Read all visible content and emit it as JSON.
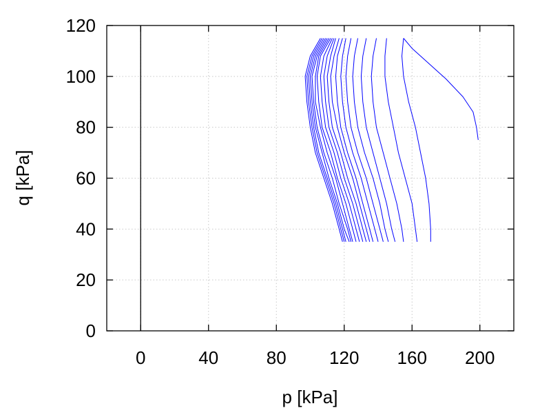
{
  "chart_data": {
    "type": "line",
    "xlabel": "p [kPa]",
    "ylabel": "q [kPa]",
    "xlim": [
      -20,
      220
    ],
    "ylim": [
      0,
      120
    ],
    "xticks": [
      0,
      40,
      80,
      120,
      160,
      200
    ],
    "yticks": [
      0,
      20,
      40,
      60,
      80,
      100,
      120
    ],
    "grid": true,
    "line_color": "#0000ff",
    "reference_line": {
      "x": 0,
      "color": "#000000"
    },
    "series": [
      {
        "points": [
          [
            155,
            115
          ],
          [
            160,
            111
          ],
          [
            170,
            105
          ],
          [
            180,
            99
          ],
          [
            190,
            92
          ],
          [
            196,
            86
          ],
          [
            198,
            80
          ],
          [
            199,
            75
          ]
        ]
      },
      {
        "points": [
          [
            171,
            35
          ],
          [
            171,
            40
          ],
          [
            170,
            50
          ],
          [
            168,
            60
          ],
          [
            165,
            70
          ],
          [
            162,
            80
          ],
          [
            158,
            90
          ],
          [
            155,
            100
          ],
          [
            154,
            108
          ],
          [
            155,
            115
          ]
        ]
      },
      {
        "points": [
          [
            163,
            35
          ],
          [
            162,
            40
          ],
          [
            160,
            50
          ],
          [
            156,
            60
          ],
          [
            152,
            70
          ],
          [
            149,
            80
          ],
          [
            146,
            90
          ],
          [
            144,
            100
          ],
          [
            144,
            108
          ],
          [
            145,
            115
          ]
        ]
      },
      {
        "points": [
          [
            155,
            35
          ],
          [
            154,
            40
          ],
          [
            151,
            50
          ],
          [
            147,
            60
          ],
          [
            143,
            70
          ],
          [
            139,
            80
          ],
          [
            137,
            90
          ],
          [
            136,
            100
          ],
          [
            137,
            108
          ],
          [
            139,
            115
          ]
        ]
      },
      {
        "points": [
          [
            150,
            35
          ],
          [
            148,
            40
          ],
          [
            145,
            50
          ],
          [
            141,
            60
          ],
          [
            137,
            70
          ],
          [
            133,
            80
          ],
          [
            131,
            90
          ],
          [
            130,
            100
          ],
          [
            131,
            108
          ],
          [
            133,
            115
          ]
        ]
      },
      {
        "points": [
          [
            146,
            35
          ],
          [
            144,
            40
          ],
          [
            141,
            50
          ],
          [
            137,
            60
          ],
          [
            132,
            70
          ],
          [
            128,
            80
          ],
          [
            126,
            90
          ],
          [
            125,
            100
          ],
          [
            126,
            108
          ],
          [
            128,
            115
          ]
        ]
      },
      {
        "points": [
          [
            143,
            35
          ],
          [
            141,
            40
          ],
          [
            137,
            50
          ],
          [
            133,
            60
          ],
          [
            128,
            70
          ],
          [
            124,
            80
          ],
          [
            122,
            90
          ],
          [
            121,
            100
          ],
          [
            122,
            108
          ],
          [
            124,
            115
          ]
        ]
      },
      {
        "points": [
          [
            140,
            35
          ],
          [
            138,
            40
          ],
          [
            134,
            50
          ],
          [
            130,
            60
          ],
          [
            125,
            70
          ],
          [
            121,
            80
          ],
          [
            119,
            90
          ],
          [
            118,
            100
          ],
          [
            119,
            108
          ],
          [
            121,
            115
          ]
        ]
      },
      {
        "points": [
          [
            137,
            35
          ],
          [
            135,
            40
          ],
          [
            131,
            50
          ],
          [
            127,
            60
          ],
          [
            122,
            70
          ],
          [
            118,
            80
          ],
          [
            116,
            90
          ],
          [
            115,
            100
          ],
          [
            116,
            108
          ],
          [
            119,
            115
          ]
        ]
      },
      {
        "points": [
          [
            135,
            35
          ],
          [
            133,
            40
          ],
          [
            129,
            50
          ],
          [
            125,
            60
          ],
          [
            120,
            70
          ],
          [
            116,
            80
          ],
          [
            113,
            90
          ],
          [
            112,
            100
          ],
          [
            114,
            108
          ],
          [
            117,
            115
          ]
        ]
      },
      {
        "points": [
          [
            133,
            35
          ],
          [
            131,
            40
          ],
          [
            127,
            50
          ],
          [
            122,
            60
          ],
          [
            118,
            70
          ],
          [
            113,
            80
          ],
          [
            111,
            90
          ],
          [
            110,
            100
          ],
          [
            112,
            108
          ],
          [
            115,
            115
          ]
        ]
      },
      {
        "points": [
          [
            131,
            35
          ],
          [
            129,
            40
          ],
          [
            125,
            50
          ],
          [
            120,
            60
          ],
          [
            116,
            70
          ],
          [
            111,
            80
          ],
          [
            109,
            90
          ],
          [
            108,
            100
          ],
          [
            110,
            108
          ],
          [
            114,
            115
          ]
        ]
      },
      {
        "points": [
          [
            129,
            35
          ],
          [
            127,
            40
          ],
          [
            123,
            50
          ],
          [
            118,
            60
          ],
          [
            114,
            70
          ],
          [
            109,
            80
          ],
          [
            107,
            90
          ],
          [
            106,
            100
          ],
          [
            108,
            108
          ],
          [
            113,
            115
          ]
        ]
      },
      {
        "points": [
          [
            127,
            35
          ],
          [
            125,
            40
          ],
          [
            121,
            50
          ],
          [
            116,
            60
          ],
          [
            112,
            70
          ],
          [
            107,
            80
          ],
          [
            105,
            90
          ],
          [
            104,
            100
          ],
          [
            106,
            108
          ],
          [
            112,
            115
          ]
        ]
      },
      {
        "points": [
          [
            125,
            35
          ],
          [
            123,
            40
          ],
          [
            119,
            50
          ],
          [
            115,
            60
          ],
          [
            110,
            70
          ],
          [
            106,
            80
          ],
          [
            103,
            90
          ],
          [
            103,
            100
          ],
          [
            105,
            108
          ],
          [
            111,
            115
          ]
        ]
      },
      {
        "points": [
          [
            124,
            35
          ],
          [
            122,
            40
          ],
          [
            117,
            50
          ],
          [
            113,
            60
          ],
          [
            108,
            70
          ],
          [
            104,
            80
          ],
          [
            102,
            90
          ],
          [
            101,
            100
          ],
          [
            104,
            108
          ],
          [
            110,
            115
          ]
        ]
      },
      {
        "points": [
          [
            123,
            35
          ],
          [
            120,
            40
          ],
          [
            116,
            50
          ],
          [
            111,
            60
          ],
          [
            107,
            70
          ],
          [
            103,
            80
          ],
          [
            101,
            90
          ],
          [
            100,
            100
          ],
          [
            103,
            108
          ],
          [
            109,
            115
          ]
        ]
      },
      {
        "points": [
          [
            121,
            35
          ],
          [
            119,
            40
          ],
          [
            115,
            50
          ],
          [
            110,
            60
          ],
          [
            105,
            70
          ],
          [
            102,
            80
          ],
          [
            100,
            90
          ],
          [
            99,
            100
          ],
          [
            102,
            108
          ],
          [
            108,
            115
          ]
        ]
      },
      {
        "points": [
          [
            120,
            35
          ],
          [
            118,
            40
          ],
          [
            114,
            50
          ],
          [
            109,
            60
          ],
          [
            104,
            70
          ],
          [
            101,
            80
          ],
          [
            99,
            90
          ],
          [
            98,
            100
          ],
          [
            101,
            108
          ],
          [
            107,
            115
          ]
        ]
      },
      {
        "points": [
          [
            119,
            35
          ],
          [
            117,
            40
          ],
          [
            113,
            50
          ],
          [
            108,
            60
          ],
          [
            103,
            70
          ],
          [
            100,
            80
          ],
          [
            98,
            90
          ],
          [
            97,
            100
          ],
          [
            100,
            108
          ],
          [
            106,
            115
          ]
        ]
      }
    ]
  }
}
